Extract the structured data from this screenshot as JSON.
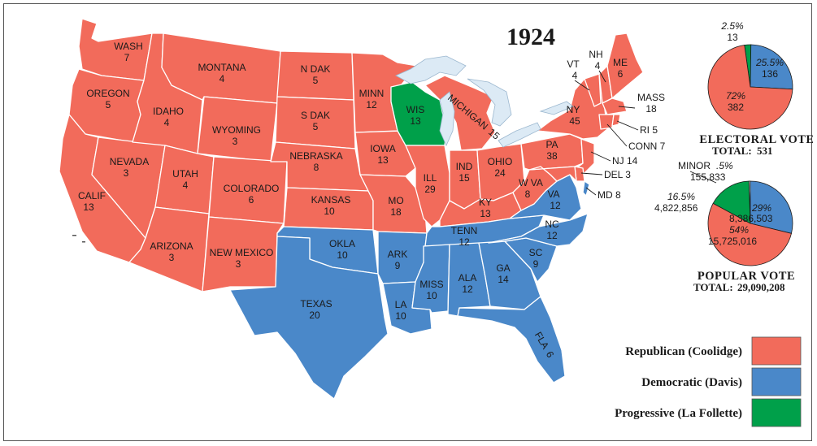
{
  "title": "1924",
  "colors": {
    "republican": "#F26B5B",
    "democratic": "#4A88C9",
    "progressive": "#00A04A",
    "water": "#DCEAF5",
    "outline": "#ffffff"
  },
  "states": {
    "wash": {
      "name": "WASH",
      "ev": "7"
    },
    "oregon": {
      "name": "OREGON",
      "ev": "5"
    },
    "calif": {
      "name": "CALIF",
      "ev": "13"
    },
    "nevada": {
      "name": "NEVADA",
      "ev": "3"
    },
    "idaho": {
      "name": "IDAHO",
      "ev": "4"
    },
    "montana": {
      "name": "MONTANA",
      "ev": "4"
    },
    "wyoming": {
      "name": "WYOMING",
      "ev": "3"
    },
    "utah": {
      "name": "UTAH",
      "ev": "4"
    },
    "arizona": {
      "name": "ARIZONA",
      "ev": "3"
    },
    "colorado": {
      "name": "COLORADO",
      "ev": "6"
    },
    "newmexico": {
      "name": "NEW MEXICO",
      "ev": "3"
    },
    "ndak": {
      "name": "N DAK",
      "ev": "5"
    },
    "sdak": {
      "name": "S DAK",
      "ev": "5"
    },
    "nebraska": {
      "name": "NEBRASKA",
      "ev": "8"
    },
    "kansas": {
      "name": "KANSAS",
      "ev": "10"
    },
    "okla": {
      "name": "OKLA",
      "ev": "10"
    },
    "texas": {
      "name": "TEXAS",
      "ev": "20"
    },
    "minn": {
      "name": "MINN",
      "ev": "12"
    },
    "iowa": {
      "name": "IOWA",
      "ev": "13"
    },
    "mo": {
      "name": "MO",
      "ev": "18"
    },
    "ark": {
      "name": "ARK",
      "ev": "9"
    },
    "la": {
      "name": "LA",
      "ev": "10"
    },
    "wis": {
      "name": "WIS",
      "ev": "13"
    },
    "ill": {
      "name": "ILL",
      "ev": "29"
    },
    "michigan": {
      "name": "MICHIGAN",
      "ev": "15"
    },
    "ind": {
      "name": "IND",
      "ev": "15"
    },
    "ohio": {
      "name": "OHIO",
      "ev": "24"
    },
    "ky": {
      "name": "KY",
      "ev": "13"
    },
    "tenn": {
      "name": "TENN",
      "ev": "12"
    },
    "miss": {
      "name": "MISS",
      "ev": "10"
    },
    "ala": {
      "name": "ALA",
      "ev": "12"
    },
    "ga": {
      "name": "GA",
      "ev": "14"
    },
    "fla": {
      "name": "FLA",
      "ev": "6"
    },
    "sc": {
      "name": "SC",
      "ev": "9"
    },
    "nc": {
      "name": "NC",
      "ev": "12"
    },
    "va": {
      "name": "VA",
      "ev": "12"
    },
    "wva": {
      "name": "W VA",
      "ev": "8"
    },
    "pa": {
      "name": "PA",
      "ev": "38"
    },
    "ny": {
      "name": "NY",
      "ev": "45"
    },
    "vt": {
      "name": "VT",
      "ev": "4"
    },
    "nh": {
      "name": "NH",
      "ev": "4"
    },
    "me": {
      "name": "ME",
      "ev": "6"
    },
    "mass": {
      "name": "MASS",
      "ev": "18"
    },
    "ri": {
      "label": "RI 5"
    },
    "conn": {
      "label": "CONN 7"
    },
    "nj": {
      "label": "NJ 14"
    },
    "del": {
      "label": "DEL 3"
    },
    "md": {
      "label": "MD 8"
    }
  },
  "electoral": {
    "heading": "ELECTORAL VOTE",
    "total_label": "TOTAL:",
    "total": "531",
    "slices": [
      {
        "party": "republican",
        "pct": "72%",
        "votes": "382",
        "value": 382
      },
      {
        "party": "democratic",
        "pct": "25.5%",
        "votes": "136",
        "value": 136
      },
      {
        "party": "progressive",
        "pct": "2.5%",
        "votes": "13",
        "value": 13
      }
    ]
  },
  "popular": {
    "heading": "POPULAR VOTE",
    "total_label": "TOTAL:",
    "total": "29,090,208",
    "minor_label": "MINOR",
    "slices": [
      {
        "party": "republican",
        "pct": "54%",
        "votes": "15,725,016",
        "value": 15725016
      },
      {
        "party": "democratic",
        "pct": "29%",
        "votes": "8,386,503",
        "value": 8386503
      },
      {
        "party": "progressive",
        "pct": "16.5%",
        "votes": "4,822,856",
        "value": 4822856
      },
      {
        "party": "minor",
        "pct": ".5%",
        "votes": "155,833",
        "value": 155833
      }
    ]
  },
  "legend": [
    {
      "label": "Republican (Coolidge)",
      "party": "republican"
    },
    {
      "label": "Democratic (Davis)",
      "party": "democratic"
    },
    {
      "label": "Progressive (La Follette)",
      "party": "progressive"
    }
  ]
}
